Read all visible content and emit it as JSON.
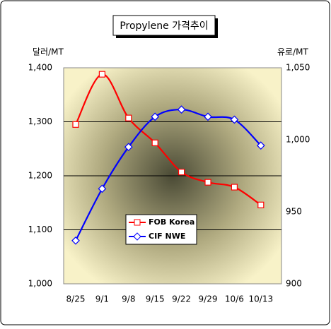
{
  "chart_data": {
    "type": "line",
    "title": "Propylene 가격추이",
    "y_label": "달러/MT",
    "y2_label": "유로/MT",
    "categories": [
      "8/25",
      "9/1",
      "9/8",
      "9/15",
      "9/22",
      "9/29",
      "10/6",
      "10/13"
    ],
    "series": [
      {
        "name": "FOB Korea",
        "color": "#ff0000",
        "marker": "square",
        "values": [
          1295,
          1388,
          1307,
          1261,
          1207,
          1188,
          1179,
          1146
        ]
      },
      {
        "name": "CIF NWE",
        "color": "#0000ff",
        "marker": "diamond",
        "axis": "y2",
        "values": [
          930,
          966,
          995,
          1016,
          1021,
          1016,
          1014,
          996
        ]
      }
    ],
    "ylim": [
      1000,
      1400
    ],
    "yticks": [
      {
        "value": 1000,
        "label": "1,000"
      },
      {
        "value": 1100,
        "label": "1,100"
      },
      {
        "value": 1200,
        "label": "1,200"
      },
      {
        "value": 1300,
        "label": "1,300"
      },
      {
        "value": 1400,
        "label": "1,400"
      }
    ],
    "y2lim": [
      900,
      1050
    ],
    "y2ticks": [
      900,
      950,
      {
        "value": 1000,
        "label": "1,000"
      },
      {
        "value": 1050,
        "label": "1,050"
      }
    ],
    "grid": true
  }
}
